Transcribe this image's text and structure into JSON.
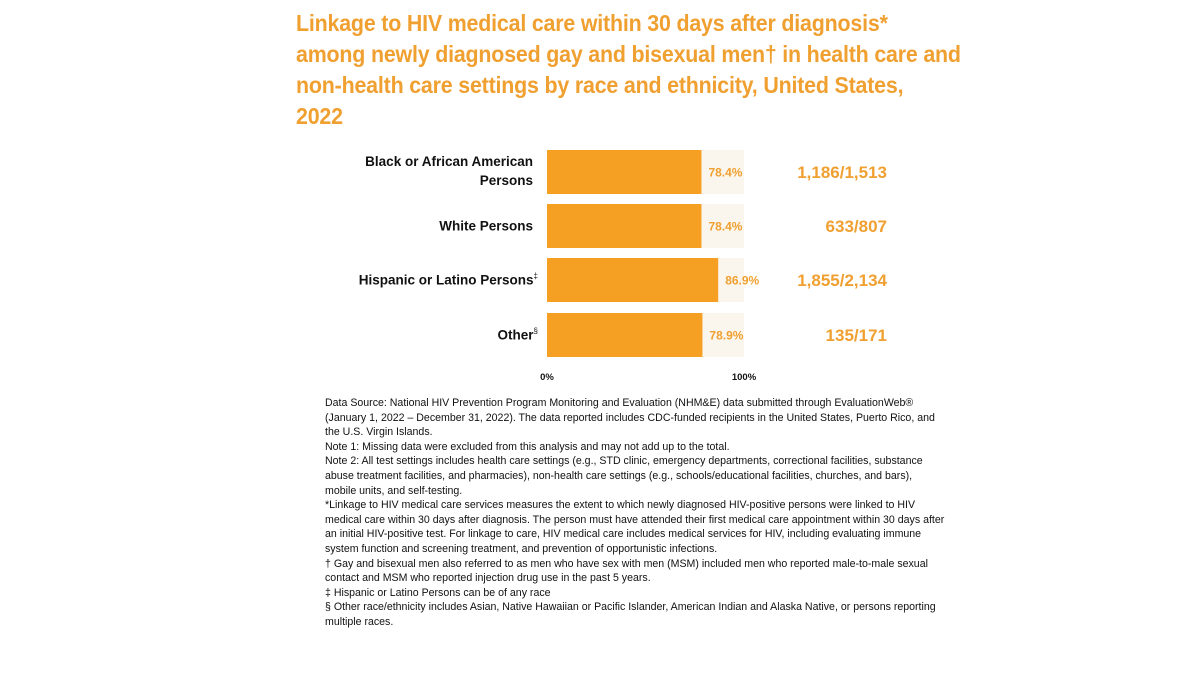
{
  "title_lines": [
    "Linkage to HIV medical care within 30 days after diagnosis*",
    "among newly diagnosed gay and bisexual men† in health care and",
    "non-health care settings by race and ethnicity, United States,",
    "2022"
  ],
  "chart_data": {
    "type": "bar",
    "orientation": "horizontal",
    "categories": [
      "Black or African American Persons",
      "White Persons",
      "Hispanic or Latino Persons",
      "Other"
    ],
    "category_marks": [
      "",
      "",
      "‡",
      "§"
    ],
    "values": [
      78.4,
      78.4,
      86.9,
      78.9
    ],
    "value_labels": [
      "78.4%",
      "78.4%",
      "86.9%",
      "78.9%"
    ],
    "counts": [
      "1,186/1,513",
      "633/807",
      "1,855/2,134",
      "135/171"
    ],
    "axis_labels": [
      "0%",
      "100%"
    ],
    "xlim": [
      0,
      100
    ],
    "bar_color": "#f5a023",
    "track_color": "#faf5ed",
    "label_color": "#f0a030"
  },
  "notes": [
    "Data Source: National HIV Prevention Program Monitoring and Evaluation (NHM&E) data submitted through EvaluationWeb® (January 1, 2022 – December 31, 2022). The data reported includes CDC-funded recipients in the United States, Puerto Rico, and the U.S. Virgin Islands.",
    "Note 1: Missing data were excluded from this analysis and may not add up to the total.",
    "Note 2: All test settings includes health care settings (e.g., STD clinic, emergency departments, correctional facilities, substance abuse treatment facilities, and pharmacies), non-health care settings (e.g., schools/educational facilities, churches, and bars), mobile units, and self-testing.",
    "*Linkage to HIV medical care services measures the extent to which newly diagnosed HIV-positive persons were linked to HIV medical care within 30 days after diagnosis. The person must have attended their first medical care appointment within 30 days after an initial HIV-positive test. For linkage to care, HIV medical care includes medical services for HIV, including evaluating immune system function and screening treatment, and prevention of opportunistic infections.",
    "† Gay and bisexual men also referred to as men who have sex with men (MSM) included men who reported male-to-male sexual contact and MSM who reported injection drug use in the past 5 years.",
    "‡ Hispanic or Latino Persons can be of any race",
    "§ Other race/ethnicity includes Asian, Native Hawaiian or Pacific Islander, American Indian and Alaska Native, or persons reporting multiple races."
  ]
}
